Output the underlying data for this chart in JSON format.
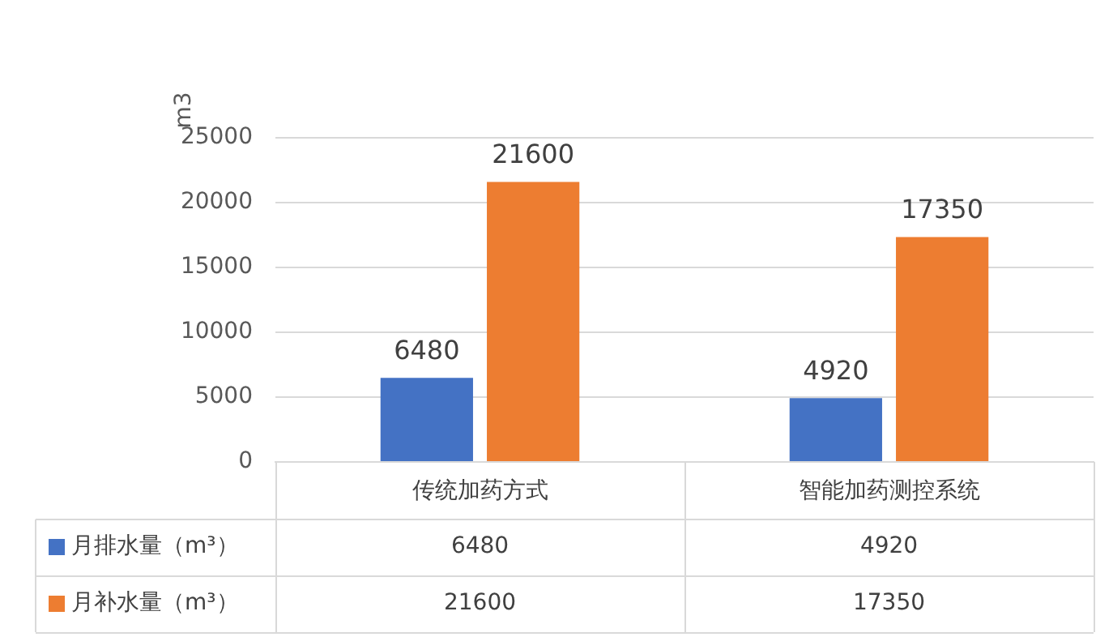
{
  "chart_data": {
    "type": "bar",
    "ylabel": "m3",
    "categories": [
      "传统加药方式",
      "智能加药测控系统"
    ],
    "series": [
      {
        "name": "月排水量（m³）",
        "color": "#4472c4",
        "values": [
          6480,
          4920
        ],
        "value_labels": [
          "6480",
          "4920"
        ]
      },
      {
        "name": "月补水量（m³）",
        "color": "#ed7d31",
        "values": [
          21600,
          17350
        ],
        "value_labels": [
          "21600",
          "17350"
        ]
      }
    ],
    "ylim": [
      0,
      25000
    ],
    "yticks": [
      0,
      5000,
      10000,
      15000,
      20000,
      25000
    ],
    "grid": "y",
    "legend": "bottom",
    "annotations": [
      "6480",
      "4920",
      "21600",
      "17350"
    ]
  }
}
